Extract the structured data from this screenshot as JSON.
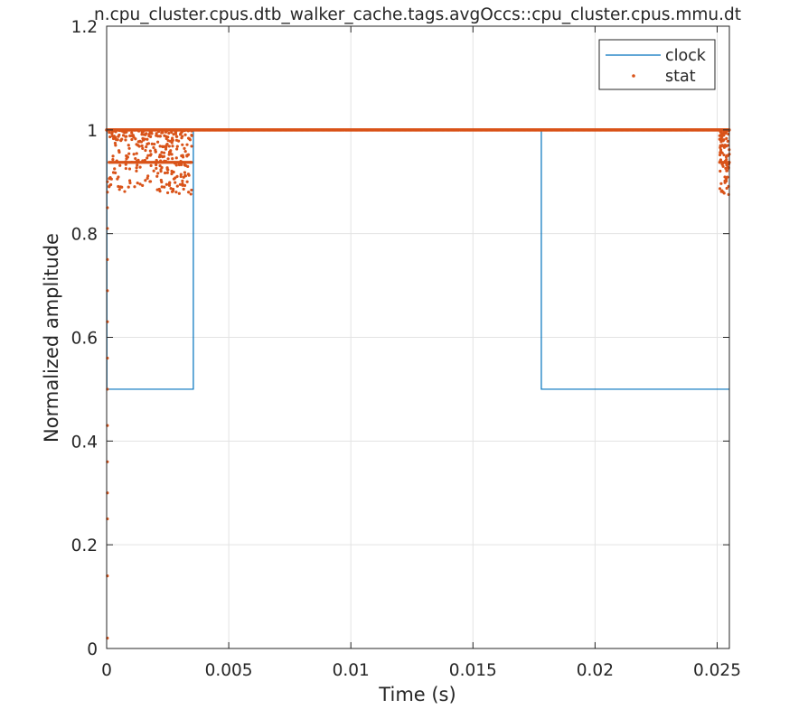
{
  "chart_data": {
    "type": "line",
    "title": "n.cpu_cluster.cpus.dtb_walker_cache.tags.avgOccs::cpu_cluster.cpus.mmu.dt",
    "xlabel": "Time (s)",
    "ylabel": "Normalized amplitude",
    "xlim": [
      0,
      0.0255
    ],
    "ylim": [
      0,
      1.2
    ],
    "xticks": [
      0,
      0.005,
      0.01,
      0.015,
      0.02,
      0.025
    ],
    "xtick_labels": [
      "0",
      "0.005",
      "0.01",
      "0.015",
      "0.02",
      "0.025"
    ],
    "yticks": [
      0,
      0.2,
      0.4,
      0.6,
      0.8,
      1,
      1.2
    ],
    "ytick_labels": [
      "0",
      "0.2",
      "0.4",
      "0.6",
      "0.8",
      "1",
      "1.2"
    ],
    "grid": true,
    "legend_position": "top-right",
    "series": [
      {
        "name": "clock",
        "style": "line",
        "color": "#0072BD",
        "x": [
          0,
          1e-05,
          1e-05,
          0.00355,
          0.00355,
          0.0178,
          0.0178,
          0.0255
        ],
        "y": [
          1,
          1,
          0.5,
          0.5,
          1,
          1,
          0.5,
          0.5
        ]
      },
      {
        "name": "stat",
        "style": "markers",
        "color": "#D95319",
        "baseline": {
          "x_start": 0,
          "x_end": 0.0255,
          "y": 1
        },
        "low_band": {
          "y": 0.9375,
          "x_ranges": [
            [
              0.0001,
              0.0035
            ],
            [
              0.0251,
              0.0255
            ]
          ]
        },
        "startup_ramp": {
          "x": 3e-05,
          "y": [
            0.02,
            0.14,
            0.25,
            0.3,
            0.36,
            0.43,
            0.5,
            0.56,
            0.63,
            0.69,
            0.75,
            0.81,
            0.85,
            0.88,
            0.9
          ]
        },
        "scatter_clusters": [
          {
            "x_range": [
              0.0001,
              0.0035
            ],
            "y_range": [
              0.875,
              1
            ],
            "count": 320
          },
          {
            "x_range": [
              0.0251,
              0.0255
            ],
            "y_range": [
              0.875,
              1
            ],
            "count": 90
          }
        ]
      }
    ]
  }
}
